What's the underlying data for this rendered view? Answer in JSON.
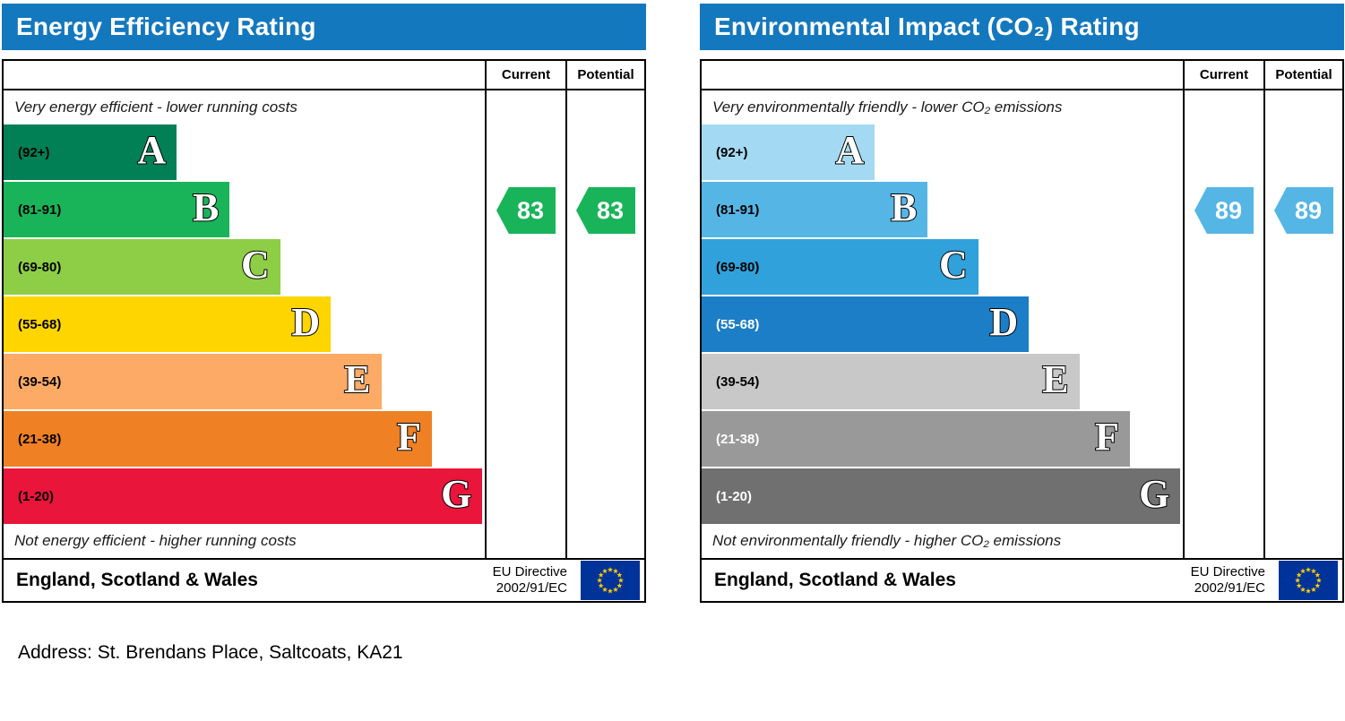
{
  "ui": {
    "header_color": "#1478be",
    "eu_flag_blue": "#003399",
    "eu_star_yellow": "#ffcc00",
    "footer_flag_icon": "eu-flag-icon"
  },
  "address_line": "Address: St. Brendans Place, Saltcoats, KA21",
  "chart_data": [
    {
      "type": "bar",
      "title": "Energy Efficiency Rating",
      "top_caption": "Very energy efficient - lower running costs",
      "bottom_caption": "Not energy efficient - higher running costs",
      "columns": {
        "current": "Current",
        "potential": "Potential"
      },
      "categories": [
        "A",
        "B",
        "C",
        "D",
        "E",
        "F",
        "G"
      ],
      "bands": [
        {
          "letter": "A",
          "range": "(92+)",
          "color": "#008054",
          "width_pct": 36
        },
        {
          "letter": "B",
          "range": "(81-91)",
          "color": "#19b459",
          "width_pct": 47
        },
        {
          "letter": "C",
          "range": "(69-80)",
          "color": "#8dce46",
          "width_pct": 57.5
        },
        {
          "letter": "D",
          "range": "(55-68)",
          "color": "#ffd500",
          "width_pct": 68
        },
        {
          "letter": "E",
          "range": "(39-54)",
          "color": "#fcaa65",
          "width_pct": 78.5
        },
        {
          "letter": "F",
          "range": "(21-38)",
          "color": "#ef8023",
          "width_pct": 89
        },
        {
          "letter": "G",
          "range": "(1-20)",
          "color": "#e9153b",
          "width_pct": 99.5
        }
      ],
      "current": {
        "value": 83,
        "band": "B",
        "band_index": 1,
        "color": "#19b459"
      },
      "potential": {
        "value": 83,
        "band": "B",
        "band_index": 1,
        "color": "#19b459"
      },
      "footer": {
        "region": "England, Scotland & Wales",
        "directive_line1": "EU Directive",
        "directive_line2": "2002/91/EC"
      }
    },
    {
      "type": "bar",
      "title": "Environmental Impact (CO₂) Rating",
      "top_caption": "Very environmentally friendly - lower CO₂ emissions",
      "bottom_caption": "Not environmentally friendly - higher CO₂ emissions",
      "columns": {
        "current": "Current",
        "potential": "Potential"
      },
      "categories": [
        "A",
        "B",
        "C",
        "D",
        "E",
        "F",
        "G"
      ],
      "bands": [
        {
          "letter": "A",
          "range": "(92+)",
          "color": "#a3d9f2",
          "width_pct": 36
        },
        {
          "letter": "B",
          "range": "(81-91)",
          "color": "#55b6e6",
          "width_pct": 47
        },
        {
          "letter": "C",
          "range": "(69-80)",
          "color": "#30a1da",
          "width_pct": 57.5
        },
        {
          "letter": "D",
          "range": "(55-68)",
          "color": "#1c7ec6",
          "width_pct": 68,
          "label_color": "#ffffff"
        },
        {
          "letter": "E",
          "range": "(39-54)",
          "color": "#c8c8c8",
          "width_pct": 78.5
        },
        {
          "letter": "F",
          "range": "(21-38)",
          "color": "#999999",
          "width_pct": 89,
          "label_color": "#ffffff"
        },
        {
          "letter": "G",
          "range": "(1-20)",
          "color": "#707070",
          "width_pct": 99.5,
          "label_color": "#ffffff"
        }
      ],
      "current": {
        "value": 89,
        "band": "B",
        "band_index": 1,
        "color": "#55b6e6"
      },
      "potential": {
        "value": 89,
        "band": "B",
        "band_index": 1,
        "color": "#55b6e6"
      },
      "footer": {
        "region": "England, Scotland & Wales",
        "directive_line1": "EU Directive",
        "directive_line2": "2002/91/EC"
      }
    }
  ]
}
